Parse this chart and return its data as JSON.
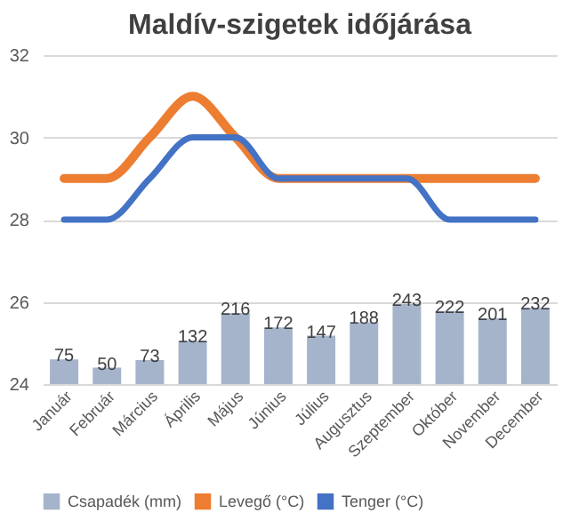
{
  "chart_data": {
    "type": "bar",
    "title": "Maldív-szigetek időjárása",
    "categories": [
      "Január",
      "Február",
      "Március",
      "Április",
      "Május",
      "Június",
      "Július",
      "Augusztus",
      "Szeptember",
      "Október",
      "November",
      "December"
    ],
    "series": [
      {
        "name": "Csapadék (mm)",
        "axis": "y2",
        "color": "#a5b4cb",
        "values": [
          75,
          50,
          73,
          132,
          216,
          172,
          147,
          188,
          243,
          222,
          201,
          232
        ],
        "value_labels": [
          "75",
          "50",
          "73",
          "132",
          "216",
          "172",
          "147",
          "188",
          "243",
          "222",
          "201",
          "232"
        ]
      },
      {
        "name": "Levegő (°C)",
        "type": "line",
        "color": "#ed7d31",
        "values": [
          29,
          29,
          30,
          31,
          30,
          29,
          29,
          29,
          29,
          29,
          29,
          29
        ]
      },
      {
        "name": "Tenger (°C)",
        "type": "line",
        "color": "#4472c4",
        "values": [
          28,
          28,
          29,
          30,
          30,
          29,
          29,
          29,
          29,
          28,
          28,
          28
        ]
      }
    ],
    "ylim": [
      24,
      32
    ],
    "yticks": [
      24,
      26,
      28,
      30,
      32
    ],
    "y2lim": [
      0,
      1000
    ],
    "tick_labels": "xy",
    "grid": "y",
    "legend": "bottom"
  }
}
